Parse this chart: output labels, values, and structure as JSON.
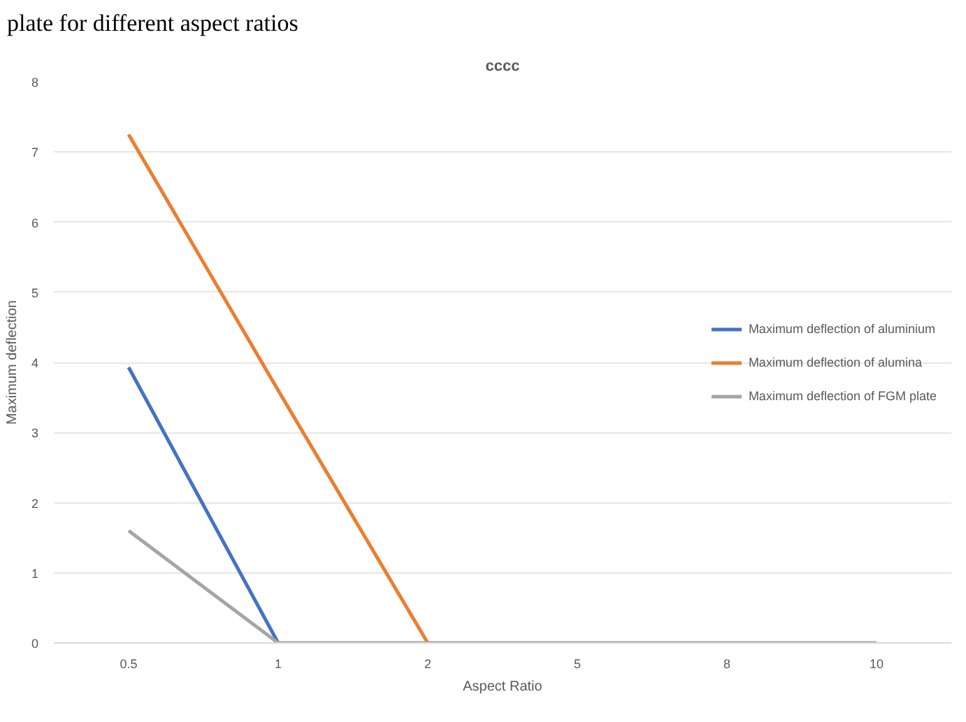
{
  "chart_data": {
    "type": "line",
    "title": "cccc",
    "xlabel": "Aspect Ratio",
    "ylabel": "Maximum deflection",
    "annotations": [
      "plate for different aspect ratios"
    ],
    "categories": [
      "0.5",
      "1",
      "2",
      "5",
      "8",
      "10"
    ],
    "series": [
      {
        "name": "Maximum deflection of aluminium",
        "color": "#4472c4",
        "values": [
          3.93,
          0,
          null,
          null,
          null,
          null
        ]
      },
      {
        "name": "Maximum deflection of alumina",
        "color": "#ed7d31",
        "values": [
          7.25,
          3.6,
          0,
          null,
          null,
          null
        ]
      },
      {
        "name": "Maximum deflection of FGM plate",
        "color": "#a5a5a5",
        "values": [
          1.6,
          0,
          0,
          0,
          0,
          0
        ]
      }
    ],
    "ylim": [
      0,
      8
    ],
    "yticks": [
      0,
      1,
      2,
      3,
      4,
      5,
      6,
      7,
      8
    ],
    "grid": "y",
    "legend": "right"
  }
}
